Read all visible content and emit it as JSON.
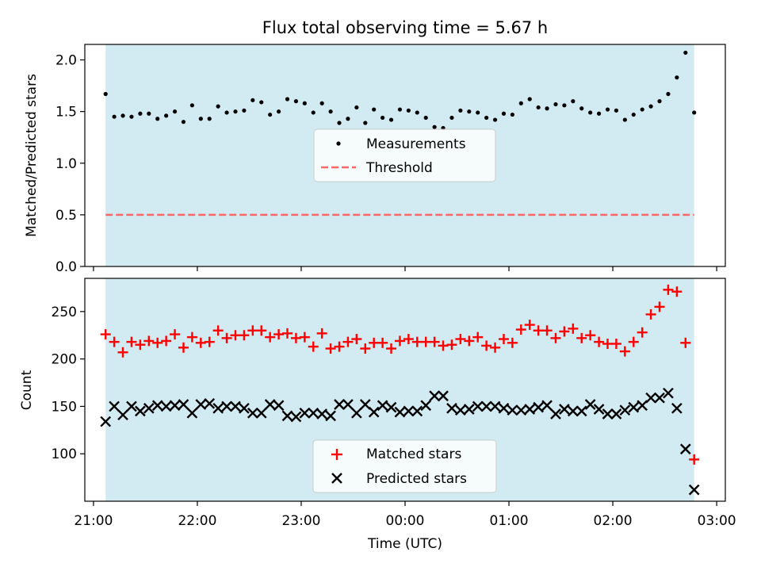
{
  "title": "Flux total observing time = 5.67 h",
  "colors": {
    "band": "#add8e6",
    "threshold": "#ff6666",
    "matched": "#ff0000",
    "predicted": "#000000",
    "measurement": "#000000"
  },
  "chart_data": [
    {
      "type": "scatter",
      "panel": "top",
      "ylabel": "Matched/Predicted stars",
      "ylim": [
        0,
        2.15
      ],
      "yticks": [
        0.0,
        0.5,
        1.0,
        1.5,
        2.0
      ],
      "ytick_labels": [
        "0.0",
        "0.5",
        "1.0",
        "1.5",
        "2.0"
      ],
      "legend_position": "center",
      "legend": [
        "Measurements",
        "Threshold"
      ],
      "shaded_range": [
        "21:07",
        "02:47"
      ],
      "threshold": 0.5,
      "x": [
        "21:07",
        "21:12",
        "21:17",
        "21:22",
        "21:27",
        "21:32",
        "21:37",
        "21:42",
        "21:47",
        "21:52",
        "21:57",
        "22:02",
        "22:07",
        "22:12",
        "22:17",
        "22:22",
        "22:27",
        "22:32",
        "22:37",
        "22:42",
        "22:47",
        "22:52",
        "22:57",
        "23:02",
        "23:07",
        "23:12",
        "23:17",
        "23:22",
        "23:27",
        "23:32",
        "23:37",
        "23:42",
        "23:47",
        "23:52",
        "23:57",
        "00:02",
        "00:07",
        "00:12",
        "00:17",
        "00:22",
        "00:27",
        "00:32",
        "00:37",
        "00:42",
        "00:47",
        "00:52",
        "00:57",
        "01:02",
        "01:07",
        "01:12",
        "01:17",
        "01:22",
        "01:27",
        "01:32",
        "01:37",
        "01:42",
        "01:47",
        "01:52",
        "01:57",
        "02:02",
        "02:07",
        "02:12",
        "02:17",
        "02:22",
        "02:27",
        "02:32",
        "02:37",
        "02:42",
        "02:47"
      ],
      "series": [
        {
          "name": "Measurements",
          "values": [
            1.67,
            1.45,
            1.46,
            1.45,
            1.48,
            1.48,
            1.43,
            1.46,
            1.5,
            1.4,
            1.56,
            1.43,
            1.43,
            1.55,
            1.49,
            1.5,
            1.51,
            1.61,
            1.59,
            1.47,
            1.5,
            1.62,
            1.6,
            1.58,
            1.49,
            1.58,
            1.5,
            1.39,
            1.43,
            1.54,
            1.39,
            1.52,
            1.44,
            1.42,
            1.52,
            1.51,
            1.49,
            1.44,
            1.35,
            1.34,
            1.44,
            1.51,
            1.5,
            1.49,
            1.44,
            1.42,
            1.48,
            1.47,
            1.58,
            1.62,
            1.54,
            1.53,
            1.57,
            1.56,
            1.6,
            1.53,
            1.49,
            1.48,
            1.52,
            1.51,
            1.42,
            1.47,
            1.52,
            1.55,
            1.6,
            1.67,
            1.83,
            2.07,
            1.49
          ]
        }
      ]
    },
    {
      "type": "scatter",
      "panel": "bottom",
      "xlabel": "Time (UTC)",
      "ylabel": "Count",
      "ylim": [
        50,
        285
      ],
      "yticks": [
        100,
        150,
        200,
        250
      ],
      "xticks": [
        "21:00",
        "22:00",
        "23:00",
        "00:00",
        "01:00",
        "02:00",
        "03:00"
      ],
      "legend_position": "lower center",
      "legend": [
        "Matched stars",
        "Predicted stars"
      ],
      "x": [
        "21:07",
        "21:12",
        "21:17",
        "21:22",
        "21:27",
        "21:32",
        "21:37",
        "21:42",
        "21:47",
        "21:52",
        "21:57",
        "22:02",
        "22:07",
        "22:12",
        "22:17",
        "22:22",
        "22:27",
        "22:32",
        "22:37",
        "22:42",
        "22:47",
        "22:52",
        "22:57",
        "23:02",
        "23:07",
        "23:12",
        "23:17",
        "23:22",
        "23:27",
        "23:32",
        "23:37",
        "23:42",
        "23:47",
        "23:52",
        "23:57",
        "00:02",
        "00:07",
        "00:12",
        "00:17",
        "00:22",
        "00:27",
        "00:32",
        "00:37",
        "00:42",
        "00:47",
        "00:52",
        "00:57",
        "01:02",
        "01:07",
        "01:12",
        "01:17",
        "01:22",
        "01:27",
        "01:32",
        "01:37",
        "01:42",
        "01:47",
        "01:52",
        "01:57",
        "02:02",
        "02:07",
        "02:12",
        "02:17",
        "02:22",
        "02:27",
        "02:32",
        "02:37",
        "02:42",
        "02:47"
      ],
      "series": [
        {
          "name": "Matched stars",
          "values": [
            226,
            218,
            207,
            218,
            215,
            219,
            217,
            219,
            226,
            212,
            223,
            217,
            218,
            230,
            222,
            225,
            225,
            230,
            230,
            223,
            226,
            227,
            222,
            223,
            213,
            227,
            211,
            213,
            218,
            221,
            211,
            217,
            217,
            211,
            219,
            221,
            218,
            218,
            218,
            214,
            215,
            221,
            219,
            223,
            214,
            212,
            221,
            217,
            231,
            236,
            230,
            230,
            222,
            229,
            232,
            222,
            225,
            218,
            216,
            216,
            208,
            218,
            228,
            247,
            255,
            273,
            271,
            217,
            94
          ]
        },
        {
          "name": "Predicted stars",
          "values": [
            134,
            150,
            141,
            150,
            145,
            148,
            151,
            150,
            151,
            152,
            143,
            152,
            153,
            148,
            150,
            150,
            148,
            143,
            143,
            152,
            151,
            140,
            139,
            143,
            143,
            142,
            140,
            152,
            152,
            143,
            152,
            144,
            151,
            149,
            144,
            145,
            145,
            151,
            161,
            161,
            148,
            146,
            147,
            150,
            150,
            150,
            148,
            146,
            146,
            147,
            149,
            151,
            142,
            147,
            145,
            145,
            152,
            147,
            142,
            142,
            146,
            149,
            151,
            159,
            159,
            164,
            148,
            105,
            62
          ]
        }
      ]
    }
  ]
}
